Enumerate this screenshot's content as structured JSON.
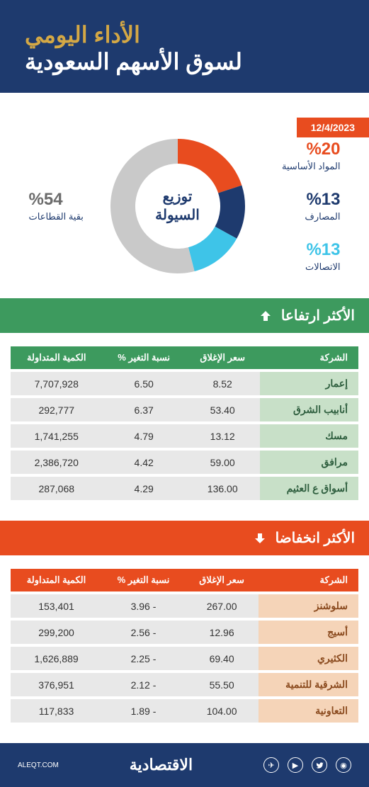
{
  "header": {
    "title_line1": "الأداء اليومي",
    "title_line2": "لسوق الأسهم السعودية"
  },
  "date": "12/4/2023",
  "donut": {
    "type": "donut",
    "center_label_line1": "توزيع",
    "center_label_line2": "السيولة",
    "inner_radius": 60,
    "outer_radius": 95,
    "background_color": "#ffffff",
    "slices": [
      {
        "label": "المواد الأساسية",
        "percent_display": "%20",
        "value": 20,
        "color": "#e84c1f"
      },
      {
        "label": "المصارف",
        "percent_display": "%13",
        "value": 13,
        "color": "#1e3a6e"
      },
      {
        "label": "الاتصالات",
        "percent_display": "%13",
        "value": 13,
        "color": "#3ec4e8"
      },
      {
        "label": "بقية القطاعات",
        "percent_display": "%54",
        "value": 54,
        "color": "#c9c9c9"
      }
    ]
  },
  "gainers": {
    "title": "الأكثر ارتفاعا",
    "header_color": "#3d9a5e",
    "row_company_bg": "#c8e0c8",
    "row_data_bg": "#e8e8e8",
    "columns": [
      "الشركة",
      "سعر الإغلاق",
      "نسبة التغير %",
      "الكمية المتداولة"
    ],
    "rows": [
      [
        "إعمار",
        "8.52",
        "6.50",
        "7,707,928"
      ],
      [
        "أنابيب الشرق",
        "53.40",
        "6.37",
        "292,777"
      ],
      [
        "مسك",
        "13.12",
        "4.79",
        "1,741,255"
      ],
      [
        "مرافق",
        "59.00",
        "4.42",
        "2,386,720"
      ],
      [
        "أسواق ع العثيم",
        "136.00",
        "4.29",
        "287,068"
      ]
    ]
  },
  "losers": {
    "title": "الأكثر انخفاضا",
    "header_color": "#e84c1f",
    "row_company_bg": "#f5d4b8",
    "row_data_bg": "#e8e8e8",
    "columns": [
      "الشركة",
      "سعر الإغلاق",
      "نسبة التغير %",
      "الكمية المتداولة"
    ],
    "rows": [
      [
        "سلوشنز",
        "267.00",
        "- 3.96",
        "153,401"
      ],
      [
        "أسيج",
        "12.96",
        "- 2.56",
        "299,200"
      ],
      [
        "الكثيري",
        "69.40",
        "- 2.25",
        "1,626,889"
      ],
      [
        "الشرقية للتنمية",
        "55.50",
        "- 2.12",
        "376,951"
      ],
      [
        "التعاونية",
        "104.00",
        "- 1.89",
        "117,833"
      ]
    ]
  },
  "footer": {
    "logo": "الاقتصادية",
    "url": "ALEQT.COM"
  }
}
